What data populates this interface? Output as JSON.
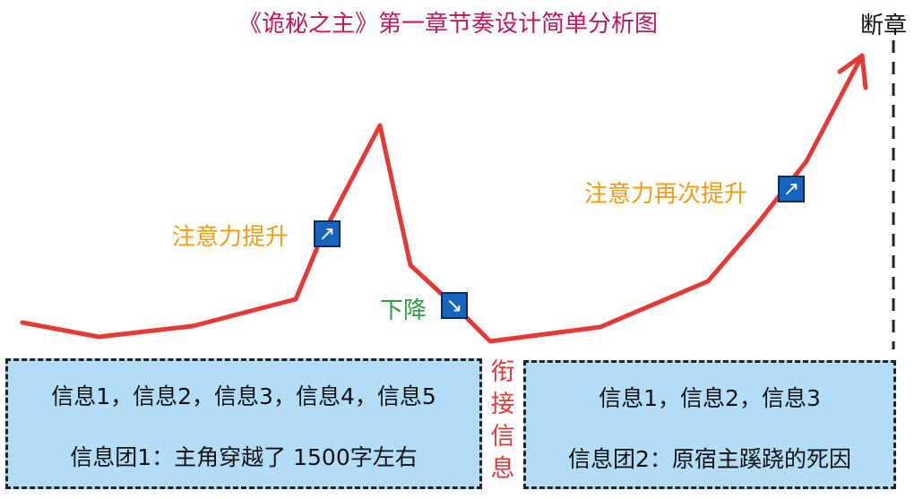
{
  "title": "《诡秘之主》第一章节奏设计简单分析图",
  "chapter_end_label": "断章",
  "annotations": {
    "rise1": "注意力提升",
    "drop": "下降",
    "rise2": "注意力再次提升",
    "rise_icon": "north-east-arrow-icon",
    "drop_icon": "south-east-arrow-icon"
  },
  "connector_label": [
    "衔",
    "接",
    "信",
    "息"
  ],
  "box_left": {
    "line1": "信息1，信息2，信息3，信息4，信息5",
    "line2": "信息团1：主角穿越了 1500字左右"
  },
  "box_right": {
    "line1": "信息1，信息2，信息3",
    "line2": "信息团2：原宿主蹊跷的死因"
  },
  "colors": {
    "curve": "#e53935",
    "title": "#c2185b",
    "rise_label": "#f39c12",
    "drop_label": "#2e9e3e",
    "box_fill": "#b3dcf7"
  }
}
